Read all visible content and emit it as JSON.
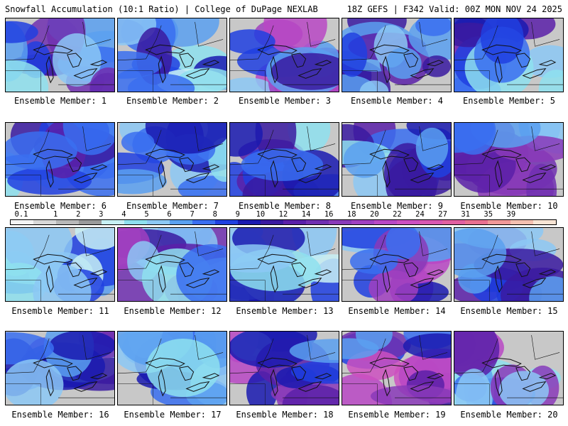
{
  "header": {
    "left": "Snowfall Accumulation (10:1 Ratio) | College of DuPage NEXLAB",
    "right": "18Z GEFS | F342 Valid: 00Z MON NOV 24 2025"
  },
  "panels": [
    {
      "label": "Ensemble Member: 1",
      "level": 0.55
    },
    {
      "label": "Ensemble Member: 2",
      "level": 0.45
    },
    {
      "label": "Ensemble Member: 3",
      "level": 0.75
    },
    {
      "label": "Ensemble Member: 4",
      "level": 0.55
    },
    {
      "label": "Ensemble Member: 5",
      "level": 0.6
    },
    {
      "label": "Ensemble Member: 6",
      "level": 0.5
    },
    {
      "label": "Ensemble Member: 7",
      "level": 0.45
    },
    {
      "label": "Ensemble Member: 8",
      "level": 0.55
    },
    {
      "label": "Ensemble Member: 9",
      "level": 0.5
    },
    {
      "label": "Ensemble Member: 10",
      "level": 0.6
    },
    {
      "label": "Ensemble Member: 11",
      "level": 0.35
    },
    {
      "label": "Ensemble Member: 12",
      "level": 0.65
    },
    {
      "label": "Ensemble Member: 13",
      "level": 0.4
    },
    {
      "label": "Ensemble Member: 14",
      "level": 0.7
    },
    {
      "label": "Ensemble Member: 15",
      "level": 0.55
    },
    {
      "label": "Ensemble Member: 16",
      "level": 0.55
    },
    {
      "label": "Ensemble Member: 17",
      "level": 0.4
    },
    {
      "label": "Ensemble Member: 18",
      "level": 0.7
    },
    {
      "label": "Ensemble Member: 19",
      "level": 0.75
    },
    {
      "label": "Ensemble Member: 20",
      "level": 0.7
    }
  ],
  "legend": {
    "ticks": [
      "0.1",
      "1",
      "2",
      "3",
      "4",
      "5",
      "6",
      "7",
      "8",
      "9",
      "10",
      "12",
      "14",
      "16",
      "18",
      "20",
      "22",
      "24",
      "27",
      "31",
      "35",
      "39"
    ],
    "colors": [
      "#f4f4f4",
      "#d8d8d8",
      "#b8b8b8",
      "#9a9a9a",
      "#c8f0f4",
      "#8ee0ee",
      "#8cc8f4",
      "#5aa0f0",
      "#3a6ef0",
      "#2040e0",
      "#1a1ab0",
      "#3a1aa0",
      "#5a20a8",
      "#7030b0",
      "#8a3ab8",
      "#a040c0",
      "#b848c4",
      "#cc50c0",
      "#d858b0",
      "#e060a0",
      "#e87090",
      "#f09898",
      "#f4c0b0",
      "#f8e4d4"
    ]
  }
}
